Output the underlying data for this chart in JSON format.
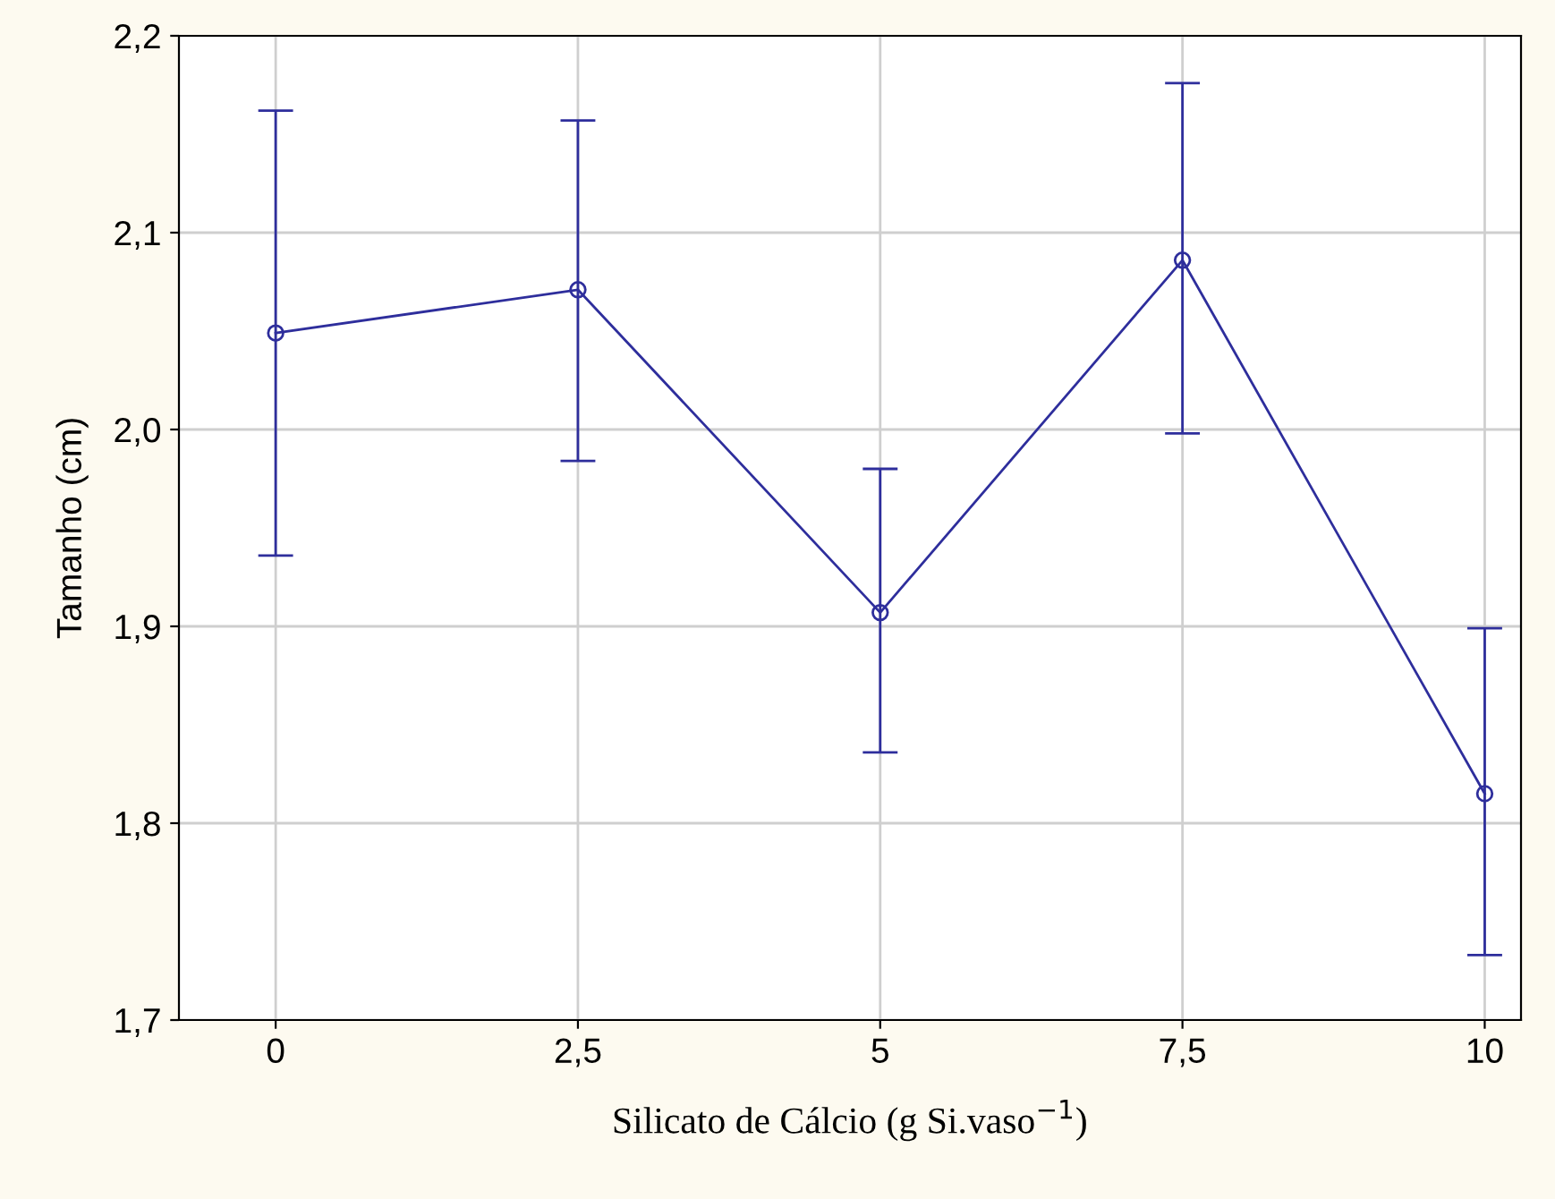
{
  "chart_data": {
    "type": "line",
    "xlabel": "Silicato de Cálcio (g Si.vaso$^{−1}$)",
    "ylabel": "Tamanho (cm)",
    "x": [
      0,
      2.5,
      5,
      7.5,
      10
    ],
    "series": [
      {
        "color": "#2e2e9c",
        "values": [
          2.049,
          2.071,
          1.907,
          2.086,
          1.815
        ],
        "errors": [
          [
            1.936,
            2.162
          ],
          [
            1.984,
            2.157
          ],
          [
            1.836,
            1.98
          ],
          [
            1.998,
            2.176
          ],
          [
            1.733,
            1.899
          ]
        ]
      }
    ],
    "xlim": [
      -0.8,
      10.3
    ],
    "ylim": [
      1.7,
      2.2
    ],
    "xticks": [
      {
        "value": 0,
        "label": "0"
      },
      {
        "value": 2.5,
        "label": "2,5"
      },
      {
        "value": 5,
        "label": "5"
      },
      {
        "value": 7.5,
        "label": "7,5"
      },
      {
        "value": 10,
        "label": "10"
      }
    ],
    "yticks": [
      {
        "value": 1.7,
        "label": "1,7"
      },
      {
        "value": 1.8,
        "label": "1,8"
      },
      {
        "value": 1.9,
        "label": "1,9"
      },
      {
        "value": 2.0,
        "label": "2,0"
      },
      {
        "value": 2.1,
        "label": "2,1"
      },
      {
        "value": 2.2,
        "label": "2,2"
      }
    ],
    "grid": true,
    "marker": "circle",
    "line_style": "solid"
  }
}
